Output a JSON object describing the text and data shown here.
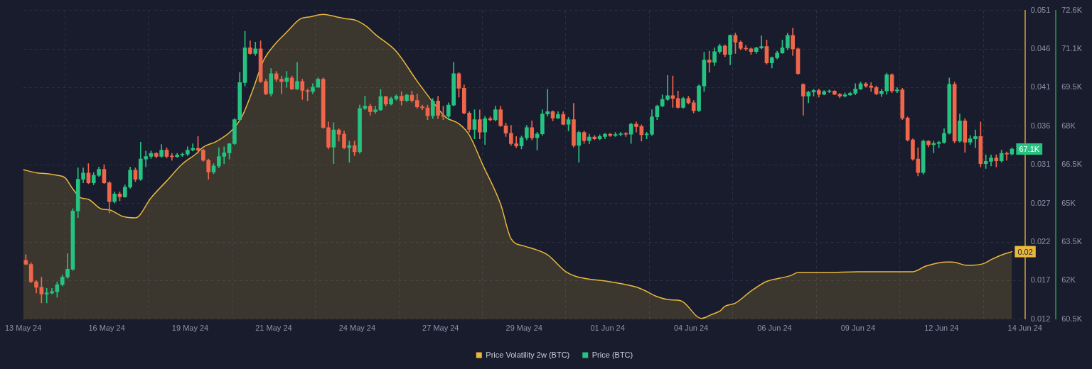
{
  "chart_data": {
    "type": "candlestick",
    "xlim": [
      "--05-13T16:00",
      "--06-14T16:00"
    ],
    "xticks": [
      {
        "value": "--05-13T16:00",
        "label": "13 May 24"
      },
      {
        "value": "--05-16T08:00",
        "label": "16 May 24"
      },
      {
        "value": "--05-19T00:00",
        "label": "19 May 24"
      },
      {
        "value": "--05-21T16:00",
        "label": "21 May 24"
      },
      {
        "value": "--05-24T08:00",
        "label": "24 May 24"
      },
      {
        "value": "--05-27T00:00",
        "label": "27 May 24"
      },
      {
        "value": "--05-29T16:00",
        "label": "29 May 24"
      },
      {
        "value": "--06-01T08:00",
        "label": "01 Jun 24"
      },
      {
        "value": "--06-04T00:00",
        "label": "04 Jun 24"
      },
      {
        "value": "--06-06T16:00",
        "label": "06 Jun 24"
      },
      {
        "value": "--06-09T08:00",
        "label": "09 Jun 24"
      },
      {
        "value": "--06-12T00:00",
        "label": "12 Jun 24"
      },
      {
        "value": "--06-14T16:00",
        "label": "14 Jun 24"
      }
    ],
    "ylim": [
      0.0122,
      0.0506
    ],
    "yticks": [
      {
        "value": 0.0122,
        "label": "0.012"
      },
      {
        "value": 0.017,
        "label": "0.017"
      },
      {
        "value": 0.0218,
        "label": "0.022"
      },
      {
        "value": 0.0266,
        "label": "0.027"
      },
      {
        "value": 0.0314,
        "label": "0.031"
      },
      {
        "value": 0.0362,
        "label": "0.036"
      },
      {
        "value": 0.041,
        "label": "0.041"
      },
      {
        "value": 0.0458,
        "label": "0.046"
      },
      {
        "value": 0.0506,
        "label": "0.051"
      }
    ],
    "y2lim": [
      60485,
      72565
    ],
    "y2ticks": [
      {
        "value": 60485,
        "label": "60.5K"
      },
      {
        "value": 61995,
        "label": "62K"
      },
      {
        "value": 63505,
        "label": "63.5K"
      },
      {
        "value": 65015,
        "label": "65K"
      },
      {
        "value": 66525,
        "label": "66.5K"
      },
      {
        "value": 68035,
        "label": "68K"
      },
      {
        "value": 69545,
        "label": "69.5K"
      },
      {
        "value": 71055,
        "label": "71.1K"
      },
      {
        "value": 72565,
        "label": "72.6K"
      }
    ],
    "grid": true,
    "legend": "bottom",
    "series": [
      {
        "type": "area",
        "name": "Price Volatility 2w (BTC)",
        "color": "#eab83c",
        "x": [
          "--05-13T16:00",
          "--05-14T02:00",
          "--05-14T10:00",
          "--05-14T18:00",
          "--05-15T00:00",
          "--05-15T06:00",
          "--05-15T12:00",
          "--05-15T18:00",
          "--05-16T04:00",
          "--05-16T10:00",
          "--05-16T20:00",
          "--05-17T06:00",
          "--05-17T18:00",
          "--05-18T06:00",
          "--05-18T18:00",
          "--05-19T04:00",
          "--05-19T10:00",
          "--05-19T20:00",
          "--05-20T08:00",
          "--05-20T16:00",
          "--05-21T00:00",
          "--05-21T08:00",
          "--05-21T16:00",
          "--05-22T02:00",
          "--05-22T12:00",
          "--05-22T20:00",
          "--05-23T06:00",
          "--05-23T16:00",
          "--05-23T22:00",
          "--05-24T08:00",
          "--05-24T16:00",
          "--05-24T22:00",
          "--05-25T14:00",
          "--05-26T06:00",
          "--05-26T20:00",
          "--05-27T04:00",
          "--05-27T14:00",
          "--05-27T22:00",
          "--05-28T08:00",
          "--05-28T22:00",
          "--05-29T06:00",
          "--05-29T16:00",
          "--05-30T02:00",
          "--05-30T10:00",
          "--05-31T00:00",
          "--05-31T08:00",
          "--06-01T08:00",
          "--06-02T06:00",
          "--06-02T12:00",
          "--06-02T22:00",
          "--06-03T08:00",
          "--06-03T16:00",
          "--06-04T08:00",
          "--06-04T16:00",
          "--06-04T22:00",
          "--06-05T02:00",
          "--06-05T10:00",
          "--06-05T22:00",
          "--06-06T10:00",
          "--06-06T20:00",
          "--06-07T04:00",
          "--06-07T10:00",
          "--06-08T08:00",
          "--06-09T08:00",
          "--06-11T02:00",
          "--06-11T12:00",
          "--06-12T04:00",
          "--06-12T08:00",
          "--06-12T20:00",
          "--06-13T08:00",
          "--06-13T14:00",
          "--06-14T00:00",
          "--06-14T06:00"
        ],
        "values": [
          0.0308,
          0.0304,
          0.0303,
          0.0301,
          0.0298,
          0.0284,
          0.0273,
          0.0271,
          0.0259,
          0.0258,
          0.025,
          0.0248,
          0.0273,
          0.0294,
          0.0315,
          0.0327,
          0.0336,
          0.0343,
          0.0357,
          0.0375,
          0.0407,
          0.0443,
          0.0462,
          0.0479,
          0.0495,
          0.0498,
          0.0501,
          0.0498,
          0.0496,
          0.0493,
          0.0485,
          0.0476,
          0.0455,
          0.0418,
          0.0388,
          0.0373,
          0.0365,
          0.0351,
          0.0315,
          0.0265,
          0.0222,
          0.0213,
          0.0208,
          0.0202,
          0.0181,
          0.0175,
          0.0169,
          0.0162,
          0.0158,
          0.015,
          0.0146,
          0.0145,
          0.0123,
          0.0128,
          0.0132,
          0.0138,
          0.0142,
          0.0157,
          0.0169,
          0.0173,
          0.0176,
          0.018,
          0.018,
          0.0181,
          0.0181,
          0.0188,
          0.0193,
          0.0193,
          0.0189,
          0.0191,
          0.0196,
          0.0203,
          0.0206
        ],
        "value_labels": [
          null,
          null,
          null,
          null,
          null,
          null,
          null,
          null,
          null,
          null,
          null,
          null,
          null,
          null,
          null,
          null,
          null,
          null,
          null,
          null,
          null,
          null,
          null,
          null,
          null,
          null,
          null,
          null,
          null,
          null,
          null,
          null,
          null,
          null,
          null,
          null,
          null,
          null,
          null,
          null,
          null,
          null,
          null,
          null,
          null,
          null,
          null,
          null,
          null,
          null,
          null,
          null,
          null,
          null,
          null,
          null,
          null,
          null,
          null,
          null,
          null,
          null,
          null,
          null,
          null,
          null,
          null,
          null,
          null,
          null,
          null,
          null,
          "0.02"
        ]
      },
      {
        "name": "Price (BTC)",
        "color": "#26c281",
        "axis": "y2",
        "x": [
          "--05-13T18:00",
          "--05-13T22:00",
          "--05-14T02:00",
          "--05-14T06:00",
          "--05-14T10:00",
          "--05-14T14:00",
          "--05-14T18:00",
          "--05-14T22:00",
          "--05-15T02:00",
          "--05-15T06:00",
          "--05-15T10:00",
          "--05-15T14:00",
          "--05-15T18:00",
          "--05-15T22:00",
          "--05-16T02:00",
          "--05-16T06:00",
          "--05-16T10:00",
          "--05-16T14:00",
          "--05-16T18:00",
          "--05-16T22:00",
          "--05-17T02:00",
          "--05-17T06:00",
          "--05-17T10:00",
          "--05-17T14:00",
          "--05-17T18:00",
          "--05-17T22:00",
          "--05-18T02:00",
          "--05-18T06:00",
          "--05-18T10:00",
          "--05-18T14:00",
          "--05-18T18:00",
          "--05-18T22:00",
          "--05-19T02:00",
          "--05-19T06:00",
          "--05-19T10:00",
          "--05-19T14:00",
          "--05-19T18:00",
          "--05-19T22:00",
          "--05-20T02:00",
          "--05-20T06:00",
          "--05-20T10:00",
          "--05-20T14:00",
          "--05-20T18:00",
          "--05-20T22:00",
          "--05-21T02:00",
          "--05-21T06:00",
          "--05-21T10:00",
          "--05-21T14:00",
          "--05-21T18:00",
          "--05-21T22:00",
          "--05-22T02:00",
          "--05-22T06:00",
          "--05-22T10:00",
          "--05-22T14:00",
          "--05-22T18:00",
          "--05-22T22:00",
          "--05-23T02:00",
          "--05-23T06:00",
          "--05-23T10:00",
          "--05-23T14:00",
          "--05-23T18:00",
          "--05-23T22:00",
          "--05-24T02:00",
          "--05-24T06:00",
          "--05-24T10:00",
          "--05-24T14:00",
          "--05-24T18:00",
          "--05-24T22:00",
          "--05-25T02:00",
          "--05-25T06:00",
          "--05-25T10:00",
          "--05-25T14:00",
          "--05-25T18:00",
          "--05-25T22:00",
          "--05-26T02:00",
          "--05-26T06:00",
          "--05-26T10:00",
          "--05-26T14:00",
          "--05-26T18:00",
          "--05-26T22:00",
          "--05-27T02:00",
          "--05-27T06:00",
          "--05-27T10:00",
          "--05-27T14:00",
          "--05-27T18:00",
          "--05-27T22:00",
          "--05-28T02:00",
          "--05-28T06:00",
          "--05-28T10:00",
          "--05-28T14:00",
          "--05-28T18:00",
          "--05-28T22:00",
          "--05-29T02:00",
          "--05-29T06:00",
          "--05-29T10:00",
          "--05-29T14:00",
          "--05-29T18:00",
          "--05-29T22:00",
          "--05-30T02:00",
          "--05-30T06:00",
          "--05-30T10:00",
          "--05-30T14:00",
          "--05-30T18:00",
          "--05-30T22:00",
          "--05-31T02:00",
          "--05-31T06:00",
          "--05-31T10:00",
          "--05-31T14:00",
          "--05-31T18:00",
          "--05-31T22:00",
          "--06-01T02:00",
          "--06-01T06:00",
          "--06-01T10:00",
          "--06-01T14:00",
          "--06-01T18:00",
          "--06-01T22:00",
          "--06-02T02:00",
          "--06-02T06:00",
          "--06-02T10:00",
          "--06-02T14:00",
          "--06-02T18:00",
          "--06-02T22:00",
          "--06-03T02:00",
          "--06-03T06:00",
          "--06-03T10:00",
          "--06-03T14:00",
          "--06-03T18:00",
          "--06-03T22:00",
          "--06-04T02:00",
          "--06-04T06:00",
          "--06-04T10:00",
          "--06-04T14:00",
          "--06-04T18:00",
          "--06-04T22:00",
          "--06-05T02:00",
          "--06-05T06:00",
          "--06-05T10:00",
          "--06-05T14:00",
          "--06-05T18:00",
          "--06-05T22:00",
          "--06-06T02:00",
          "--06-06T06:00",
          "--06-06T10:00",
          "--06-06T14:00",
          "--06-06T18:00",
          "--06-06T22:00",
          "--06-07T02:00",
          "--06-07T06:00",
          "--06-07T10:00",
          "--06-07T14:00",
          "--06-07T18:00",
          "--06-07T22:00",
          "--06-08T02:00",
          "--06-08T06:00",
          "--06-08T10:00",
          "--06-08T14:00",
          "--06-08T18:00",
          "--06-08T22:00",
          "--06-09T02:00",
          "--06-09T06:00",
          "--06-09T10:00",
          "--06-09T14:00",
          "--06-09T18:00",
          "--06-09T22:00",
          "--06-10T02:00",
          "--06-10T06:00",
          "--06-10T10:00",
          "--06-10T14:00",
          "--06-10T18:00",
          "--06-10T22:00",
          "--06-11T02:00",
          "--06-11T06:00",
          "--06-11T10:00",
          "--06-11T14:00",
          "--06-11T18:00",
          "--06-11T22:00",
          "--06-12T02:00",
          "--06-12T06:00",
          "--06-12T10:00",
          "--06-12T14:00",
          "--06-12T18:00",
          "--06-12T22:00",
          "--06-13T02:00",
          "--06-13T06:00",
          "--06-13T10:00",
          "--06-13T14:00",
          "--06-13T18:00",
          "--06-13T22:00",
          "--06-14T02:00",
          "--06-14T06:00"
        ],
        "ohlc": [
          [
            62790,
            63010,
            62610,
            62630
          ],
          [
            62630,
            62700,
            61910,
            61950
          ],
          [
            61950,
            62000,
            61510,
            61730
          ],
          [
            61730,
            62130,
            61120,
            61470
          ],
          [
            61470,
            61690,
            61120,
            61510
          ],
          [
            61510,
            61690,
            61470,
            61570
          ],
          [
            61560,
            61950,
            61340,
            61840
          ],
          [
            61840,
            62220,
            61780,
            62130
          ],
          [
            62130,
            63050,
            62080,
            62440
          ],
          [
            62440,
            64810,
            62390,
            64720
          ],
          [
            64720,
            66400,
            64460,
            65960
          ],
          [
            65960,
            66400,
            65820,
            66200
          ],
          [
            66200,
            66570,
            65780,
            65820
          ],
          [
            65820,
            66220,
            65740,
            66110
          ],
          [
            66110,
            66440,
            66060,
            66350
          ],
          [
            66350,
            66530,
            65780,
            65820
          ],
          [
            65820,
            65870,
            64640,
            65080
          ],
          [
            65080,
            65470,
            65030,
            65380
          ],
          [
            65380,
            65470,
            65120,
            65270
          ],
          [
            65270,
            65740,
            65250,
            65650
          ],
          [
            65650,
            66440,
            65600,
            66310
          ],
          [
            66310,
            66400,
            65870,
            65960
          ],
          [
            65960,
            67410,
            65910,
            66750
          ],
          [
            66750,
            67060,
            66440,
            66850
          ],
          [
            66850,
            67060,
            66770,
            66970
          ],
          [
            66970,
            67010,
            66790,
            66850
          ],
          [
            66850,
            67320,
            66820,
            67100
          ],
          [
            67100,
            67190,
            66790,
            66850
          ],
          [
            66850,
            66970,
            66700,
            66840
          ],
          [
            66840,
            66970,
            66820,
            66910
          ],
          [
            66910,
            66990,
            66850,
            66940
          ],
          [
            66940,
            67230,
            66880,
            67100
          ],
          [
            67100,
            67350,
            67060,
            67170
          ],
          [
            67170,
            67630,
            66970,
            67100
          ],
          [
            67100,
            67140,
            66660,
            66700
          ],
          [
            66700,
            66750,
            65960,
            66240
          ],
          [
            66240,
            66570,
            66180,
            66480
          ],
          [
            66480,
            67190,
            66400,
            66850
          ],
          [
            66850,
            67230,
            66570,
            66990
          ],
          [
            66990,
            67360,
            66750,
            67350
          ],
          [
            67350,
            68330,
            67320,
            68290
          ],
          [
            68290,
            70140,
            68240,
            69740
          ],
          [
            69740,
            71750,
            69610,
            71100
          ],
          [
            71100,
            71370,
            70840,
            70880
          ],
          [
            70880,
            71320,
            70800,
            71060
          ],
          [
            71060,
            71370,
            69740,
            69780
          ],
          [
            69780,
            69870,
            69260,
            69300
          ],
          [
            69300,
            70290,
            69210,
            70090
          ],
          [
            70090,
            70180,
            69780,
            69870
          ],
          [
            69870,
            70000,
            69300,
            69780
          ],
          [
            69780,
            70180,
            69560,
            69920
          ],
          [
            69920,
            70000,
            69460,
            69490
          ],
          [
            69490,
            70530,
            69460,
            69780
          ],
          [
            69780,
            69870,
            69080,
            69430
          ],
          [
            69430,
            69490,
            69040,
            69390
          ],
          [
            69390,
            69700,
            69300,
            69560
          ],
          [
            69560,
            69930,
            69550,
            69870
          ],
          [
            69870,
            69930,
            67940,
            67980
          ],
          [
            67980,
            68200,
            67140,
            67210
          ],
          [
            67210,
            68170,
            66570,
            67890
          ],
          [
            67890,
            67940,
            67450,
            67720
          ],
          [
            67720,
            67850,
            67140,
            67190
          ],
          [
            67190,
            67450,
            66620,
            67280
          ],
          [
            67280,
            67450,
            66880,
            67030
          ],
          [
            67030,
            68860,
            66970,
            68730
          ],
          [
            68730,
            69210,
            68680,
            68820
          ],
          [
            68820,
            68900,
            68460,
            68600
          ],
          [
            68600,
            68820,
            68530,
            68670
          ],
          [
            68670,
            69480,
            68640,
            69190
          ],
          [
            69190,
            69210,
            68820,
            68900
          ],
          [
            68900,
            69170,
            68860,
            69110
          ],
          [
            69110,
            69260,
            69050,
            69210
          ],
          [
            69210,
            69390,
            68860,
            69040
          ],
          [
            69040,
            69300,
            68990,
            69250
          ],
          [
            69250,
            69410,
            68970,
            69040
          ],
          [
            69040,
            69300,
            68730,
            68790
          ],
          [
            68790,
            68860,
            68680,
            68750
          ],
          [
            68750,
            68860,
            68290,
            68440
          ],
          [
            68440,
            69120,
            68330,
            69020
          ],
          [
            69020,
            69210,
            68330,
            68460
          ],
          [
            68460,
            68820,
            68290,
            68420
          ],
          [
            68420,
            68950,
            68290,
            68860
          ],
          [
            68860,
            70530,
            68820,
            70090
          ],
          [
            70090,
            70140,
            69170,
            69520
          ],
          [
            69520,
            69650,
            68510,
            68550
          ],
          [
            68550,
            68600,
            67800,
            67910
          ],
          [
            67910,
            68680,
            67540,
            68290
          ],
          [
            68290,
            68670,
            67540,
            67800
          ],
          [
            67800,
            68420,
            67320,
            68330
          ],
          [
            68330,
            68400,
            68230,
            68280
          ],
          [
            68280,
            68820,
            68240,
            68680
          ],
          [
            68680,
            68820,
            68020,
            68050
          ],
          [
            68050,
            68160,
            67630,
            67760
          ],
          [
            67760,
            68070,
            67280,
            67350
          ],
          [
            67350,
            67630,
            67190,
            67260
          ],
          [
            67260,
            67650,
            67140,
            67580
          ],
          [
            67580,
            68070,
            67500,
            67980
          ],
          [
            67980,
            68240,
            67500,
            67580
          ],
          [
            67580,
            67800,
            67100,
            67730
          ],
          [
            67730,
            68680,
            67670,
            68510
          ],
          [
            68510,
            69480,
            68420,
            68600
          ],
          [
            68600,
            68640,
            68240,
            68350
          ],
          [
            68350,
            68600,
            68330,
            68490
          ],
          [
            68490,
            68600,
            68090,
            68110
          ],
          [
            68110,
            68380,
            67850,
            68290
          ],
          [
            68290,
            68930,
            67210,
            67280
          ],
          [
            67280,
            67850,
            66620,
            67790
          ],
          [
            67790,
            67850,
            67360,
            67470
          ],
          [
            67470,
            67720,
            67350,
            67610
          ],
          [
            67610,
            67670,
            67500,
            67540
          ],
          [
            67540,
            67700,
            67500,
            67630
          ],
          [
            67630,
            67760,
            67540,
            67720
          ],
          [
            67720,
            67760,
            67630,
            67670
          ],
          [
            67670,
            67790,
            67630,
            67710
          ],
          [
            67710,
            67790,
            67650,
            67730
          ],
          [
            67730,
            67790,
            67630,
            67720
          ],
          [
            67720,
            68160,
            67360,
            68110
          ],
          [
            68110,
            68200,
            67800,
            68020
          ],
          [
            68020,
            68090,
            67450,
            67700
          ],
          [
            67700,
            67800,
            67540,
            67720
          ],
          [
            67720,
            68680,
            67670,
            68400
          ],
          [
            68400,
            68860,
            68290,
            68820
          ],
          [
            68820,
            69260,
            68790,
            69080
          ],
          [
            69080,
            70020,
            69040,
            69230
          ],
          [
            69230,
            70000,
            68770,
            69120
          ],
          [
            69120,
            69410,
            68730,
            68770
          ],
          [
            68770,
            69170,
            68730,
            69120
          ],
          [
            69120,
            69210,
            68900,
            68950
          ],
          [
            68950,
            69040,
            68550,
            68640
          ],
          [
            68640,
            69650,
            68600,
            69610
          ],
          [
            69610,
            70930,
            69390,
            70620
          ],
          [
            70620,
            70970,
            70140,
            70530
          ],
          [
            70530,
            71100,
            70400,
            70950
          ],
          [
            70950,
            71250,
            70880,
            71170
          ],
          [
            71170,
            71220,
            70750,
            70840
          ],
          [
            70840,
            71610,
            70430,
            71590
          ],
          [
            71590,
            71680,
            70880,
            71320
          ],
          [
            71320,
            71370,
            71020,
            71080
          ],
          [
            71080,
            71190,
            70990,
            71060
          ],
          [
            71060,
            71100,
            70840,
            70950
          ],
          [
            70950,
            71130,
            70880,
            71100
          ],
          [
            71100,
            71570,
            71060,
            71150
          ],
          [
            71150,
            71410,
            70460,
            70510
          ],
          [
            70510,
            70750,
            70310,
            70710
          ],
          [
            70710,
            70970,
            70660,
            70900
          ],
          [
            70900,
            71410,
            70880,
            71100
          ],
          [
            71100,
            71680,
            71020,
            71590
          ],
          [
            71590,
            71870,
            70800,
            71060
          ],
          [
            71060,
            71100,
            70050,
            70090
          ],
          [
            69670,
            69700,
            68460,
            69210
          ],
          [
            69210,
            69410,
            68950,
            69370
          ],
          [
            69370,
            69480,
            69210,
            69430
          ],
          [
            69430,
            69490,
            69170,
            69280
          ],
          [
            69280,
            69430,
            69260,
            69390
          ],
          [
            69390,
            69460,
            69340,
            69410
          ],
          [
            69410,
            69430,
            69260,
            69280
          ],
          [
            69280,
            69320,
            69140,
            69210
          ],
          [
            69210,
            69340,
            69170,
            69260
          ],
          [
            69260,
            69370,
            69230,
            69320
          ],
          [
            69320,
            69700,
            69260,
            69490
          ],
          [
            69490,
            69760,
            69460,
            69690
          ],
          [
            69690,
            69740,
            69560,
            69610
          ],
          [
            69610,
            69740,
            69390,
            69550
          ],
          [
            69550,
            69610,
            69260,
            69300
          ],
          [
            69300,
            69480,
            69190,
            69410
          ],
          [
            69410,
            70110,
            69280,
            70050
          ],
          [
            70050,
            70090,
            69340,
            69410
          ],
          [
            69410,
            69550,
            69340,
            69460
          ],
          [
            69460,
            69520,
            68290,
            68350
          ],
          [
            68350,
            68400,
            67450,
            67500
          ],
          [
            67500,
            67540,
            66700,
            66750
          ],
          [
            66750,
            67190,
            66090,
            66220
          ],
          [
            66220,
            67500,
            66150,
            67450
          ],
          [
            67450,
            67470,
            67230,
            67310
          ],
          [
            67310,
            67450,
            66990,
            67360
          ],
          [
            67360,
            67450,
            67190,
            67400
          ],
          [
            67400,
            67940,
            67360,
            67760
          ],
          [
            67760,
            69920,
            67720,
            69670
          ],
          [
            69670,
            69760,
            67380,
            67450
          ],
          [
            67450,
            68510,
            67410,
            68240
          ],
          [
            68240,
            68330,
            67010,
            67410
          ],
          [
            67410,
            67670,
            67320,
            67540
          ],
          [
            67540,
            67890,
            67190,
            67630
          ],
          [
            67630,
            68200,
            66440,
            66570
          ],
          [
            66570,
            66920,
            66380,
            66660
          ],
          [
            66660,
            66910,
            66480,
            66790
          ],
          [
            66790,
            66920,
            66440,
            66680
          ],
          [
            66680,
            67100,
            66620,
            66970
          ],
          [
            66970,
            67030,
            66700,
            66940
          ],
          [
            66940,
            67190,
            66910,
            67140
          ]
        ],
        "colors": [
          "#f0664b",
          "#f0664b",
          "#f0664b",
          "#f0664b",
          "#26c281",
          "#26c281",
          "#26c281",
          "#26c281",
          "#26c281",
          "#26c281",
          "#26c281",
          "#26c281",
          "#f0664b",
          "#26c281",
          "#26c281",
          "#f0664b",
          "#f0664b",
          "#26c281",
          "#f0664b",
          "#26c281",
          "#26c281",
          "#f0664b",
          "#26c281",
          "#26c281",
          "#26c281",
          "#f0664b",
          "#26c281",
          "#f0664b",
          "#f0664b",
          "#26c281",
          "#26c281",
          "#26c281",
          "#26c281",
          "#f0664b",
          "#f0664b",
          "#f0664b",
          "#26c281",
          "#26c281",
          "#26c281",
          "#26c281",
          "#26c281",
          "#26c281",
          "#26c281",
          "#f0664b",
          "#26c281",
          "#f0664b",
          "#f0664b",
          "#26c281",
          "#f0664b",
          "#f0664b",
          "#26c281",
          "#f0664b",
          "#26c281",
          "#f0664b",
          "#f0664b",
          "#26c281",
          "#26c281",
          "#f0664b",
          "#f0664b",
          "#26c281",
          "#f0664b",
          "#f0664b",
          "#26c281",
          "#f0664b",
          "#26c281",
          "#26c281",
          "#f0664b",
          "#26c281",
          "#26c281",
          "#f0664b",
          "#26c281",
          "#26c281",
          "#f0664b",
          "#26c281",
          "#f0664b",
          "#f0664b",
          "#f0664b",
          "#f0664b",
          "#26c281",
          "#f0664b",
          "#f0664b",
          "#26c281",
          "#26c281",
          "#f0664b",
          "#f0664b",
          "#f0664b",
          "#26c281",
          "#f0664b",
          "#26c281",
          "#f0664b",
          "#26c281",
          "#f0664b",
          "#f0664b",
          "#f0664b",
          "#f0664b",
          "#26c281",
          "#26c281",
          "#f0664b",
          "#26c281",
          "#26c281",
          "#26c281",
          "#f0664b",
          "#26c281",
          "#f0664b",
          "#26c281",
          "#f0664b",
          "#26c281",
          "#f0664b",
          "#26c281",
          "#f0664b",
          "#26c281",
          "#26c281",
          "#f0664b",
          "#26c281",
          "#26c281",
          "#f0664b",
          "#26c281",
          "#f0664b",
          "#f0664b",
          "#26c281",
          "#26c281",
          "#26c281",
          "#26c281",
          "#26c281",
          "#f0664b",
          "#f0664b",
          "#26c281",
          "#f0664b",
          "#f0664b",
          "#26c281",
          "#26c281",
          "#f0664b",
          "#26c281",
          "#26c281",
          "#f0664b",
          "#26c281",
          "#f0664b",
          "#f0664b",
          "#f0664b",
          "#f0664b",
          "#26c281",
          "#26c281",
          "#f0664b",
          "#26c281",
          "#26c281",
          "#26c281",
          "#26c281",
          "#f0664b",
          "#f0664b",
          "#f0664b",
          "#26c281",
          "#26c281",
          "#f0664b",
          "#26c281",
          "#26c281",
          "#f0664b",
          "#f0664b",
          "#26c281",
          "#26c281",
          "#26c281",
          "#26c281",
          "#f0664b",
          "#f0664b",
          "#f0664b",
          "#26c281",
          "#26c281",
          "#f0664b",
          "#26c281",
          "#f0664b",
          "#f0664b",
          "#f0664b",
          "#f0664b",
          "#26c281",
          "#f0664b",
          "#26c281",
          "#26c281",
          "#26c281",
          "#26c281",
          "#f0664b",
          "#26c281",
          "#f0664b",
          "#26c281",
          "#26c281",
          "#f0664b",
          "#26c281",
          "#26c281",
          "#f0664b",
          "#26c281",
          "#f0664b",
          "#26c281"
        ],
        "value_labels": [
          null,
          null,
          null,
          null,
          null,
          null,
          null,
          null,
          null,
          null,
          null,
          null,
          null,
          null,
          null,
          null,
          null,
          null,
          null,
          null,
          null,
          null,
          null,
          null,
          null,
          null,
          null,
          null,
          null,
          null,
          null,
          null,
          null,
          null,
          null,
          null,
          null,
          null,
          null,
          null,
          null,
          null,
          null,
          null,
          null,
          null,
          null,
          null,
          null,
          null,
          null,
          null,
          null,
          null,
          null,
          null,
          null,
          null,
          null,
          null,
          null,
          null,
          null,
          null,
          null,
          null,
          null,
          null,
          null,
          null,
          null,
          null,
          null,
          null,
          null,
          null,
          null,
          null,
          null,
          null,
          null,
          null,
          null,
          null,
          null,
          null,
          null,
          null,
          null,
          null,
          null,
          null,
          null,
          null,
          null,
          null,
          null,
          null,
          null,
          null,
          null,
          null,
          null,
          null,
          null,
          null,
          null,
          null,
          null,
          null,
          null,
          null,
          null,
          null,
          null,
          null,
          null,
          null,
          null,
          null,
          null,
          null,
          null,
          null,
          null,
          null,
          null,
          null,
          null,
          null,
          null,
          null,
          null,
          null,
          null,
          null,
          null,
          null,
          null,
          null,
          null,
          null,
          null,
          null,
          null,
          null,
          null,
          null,
          null,
          null,
          null,
          null,
          null,
          null,
          null,
          null,
          null,
          null,
          null,
          null,
          null,
          null,
          null,
          null,
          null,
          null,
          null,
          null,
          null,
          null,
          null,
          null,
          null,
          null,
          null,
          null,
          null,
          null,
          null,
          null,
          null,
          null,
          null,
          null,
          null,
          null,
          null,
          null,
          null,
          "67.1K"
        ]
      }
    ]
  }
}
